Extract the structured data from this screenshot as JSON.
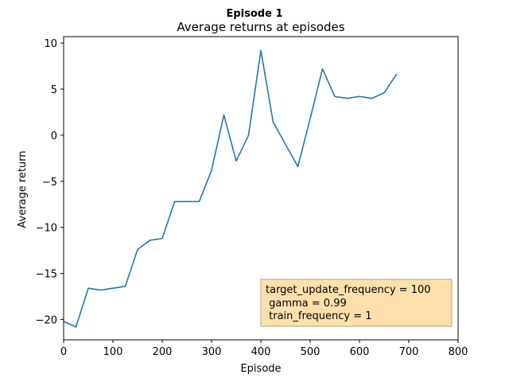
{
  "chart_data": {
    "type": "line",
    "suptitle": "Episode 1",
    "title": "Average returns at episodes",
    "xlabel": "Episode",
    "ylabel": "Average return",
    "xlim": [
      0,
      800
    ],
    "ylim": [
      -22.2,
      10.7
    ],
    "xticks": [
      0,
      100,
      200,
      300,
      400,
      500,
      600,
      700,
      800
    ],
    "yticks": [
      -20,
      -15,
      -10,
      -5,
      0,
      5,
      10
    ],
    "grid": false,
    "colors": {
      "line": "#1f77b4",
      "annotation_fill": "#ffe0ac",
      "annotation_edge": "#b3a07a"
    },
    "series": [
      {
        "x": [
          0,
          25,
          50,
          75,
          100,
          125,
          150,
          175,
          200,
          225,
          250,
          275,
          300,
          325,
          350,
          375,
          400,
          425,
          450,
          475,
          500,
          525,
          550,
          575,
          600,
          625,
          650,
          675
        ],
        "y": [
          -20.2,
          -20.8,
          -16.6,
          -16.8,
          -16.6,
          -16.4,
          -12.4,
          -11.4,
          -11.2,
          -7.2,
          -7.2,
          -7.2,
          -3.8,
          2.2,
          -2.8,
          0.0,
          9.2,
          1.4,
          -1.0,
          -3.4,
          1.8,
          7.2,
          4.2,
          4.0,
          4.2,
          4.0,
          4.6,
          6.6
        ]
      }
    ],
    "annotation": {
      "lines": [
        "target_update_frequency = 100",
        " gamma = 0.99",
        " train_frequency = 1"
      ],
      "placement": "lower-right"
    }
  }
}
